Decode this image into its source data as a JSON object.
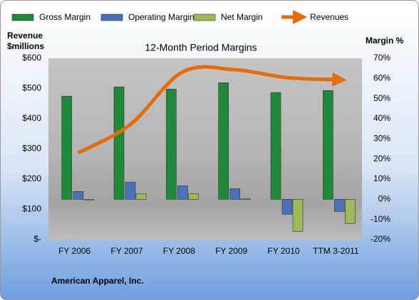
{
  "chart_data": {
    "type": "bar-line",
    "title": "12-Month Period Margins",
    "ylabel": [
      "Revenue",
      "$millions"
    ],
    "y2label": "Margin %",
    "footer": "American Apparel, Inc.",
    "categories": [
      "FY 2006",
      "FY 2007",
      "FY 2008",
      "FY 2009",
      "FY 2010",
      "TTM 3-2011"
    ],
    "series": [
      {
        "name": "Gross Margin",
        "type": "bar",
        "axis": "y2",
        "color": "#1e8a3a",
        "values": [
          51.2,
          55.8,
          54.7,
          57.9,
          53,
          54
        ]
      },
      {
        "name": "Operating Margin",
        "type": "bar",
        "axis": "y2",
        "color": "#4a72b8",
        "values": [
          3.9,
          8.5,
          6.7,
          5.3,
          -7.4,
          -6
        ]
      },
      {
        "name": "Net Margin",
        "type": "bar",
        "axis": "y2",
        "color": "#9bbb59",
        "values": [
          -0.5,
          2.8,
          2.8,
          0.2,
          -15.9,
          -12
        ]
      },
      {
        "name": "Revenues",
        "type": "line",
        "axis": "y",
        "color": "#e46c0a",
        "values": [
          287,
          381,
          555,
          562,
          536,
          529
        ]
      }
    ],
    "ylim": [
      0,
      600
    ],
    "yticks": [
      {
        "value": 0,
        "label": "$-"
      },
      {
        "value": 100,
        "label": "$100"
      },
      {
        "value": 200,
        "label": "$200"
      },
      {
        "value": 300,
        "label": "$300"
      },
      {
        "value": 400,
        "label": "$400"
      },
      {
        "value": 500,
        "label": "$500"
      },
      {
        "value": 600,
        "label": "$600"
      }
    ],
    "y2lim": [
      -20,
      70
    ],
    "y2ticks": [
      {
        "value": -20,
        "label": "-20%"
      },
      {
        "value": -10,
        "label": "-10%"
      },
      {
        "value": 0,
        "label": "0%"
      },
      {
        "value": 10,
        "label": "10%"
      },
      {
        "value": 20,
        "label": "20%"
      },
      {
        "value": 30,
        "label": "30%"
      },
      {
        "value": 40,
        "label": "40%"
      },
      {
        "value": 50,
        "label": "50%"
      },
      {
        "value": 60,
        "label": "60%"
      },
      {
        "value": 70,
        "label": "70%"
      }
    ]
  }
}
